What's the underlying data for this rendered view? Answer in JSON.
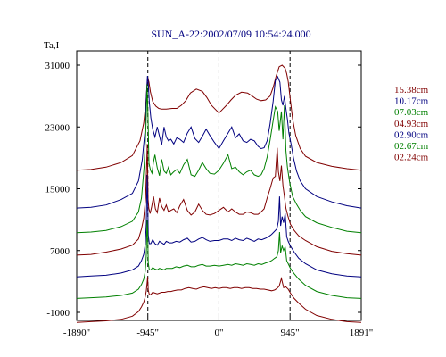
{
  "chart_data": {
    "type": "line",
    "title": "SUN_A-22:2002/07/09 10:54:24.000",
    "ylabel": "Ta,I",
    "xlabel": "",
    "x_ticks": [
      "-1890\"",
      "-945\"",
      "0\"",
      "945\"",
      "1891\""
    ],
    "x_tick_values": [
      -1890,
      -945,
      0,
      945,
      1891
    ],
    "y_ticks": [
      "31000",
      "23000",
      "15000",
      "7000",
      "-1000"
    ],
    "y_tick_values": [
      31000,
      23000,
      15000,
      7000,
      -1000
    ],
    "xlim": [
      -1890,
      1891
    ],
    "ylim": [
      -1000,
      31000
    ],
    "grid": false,
    "reference_lines_x": [
      -945,
      0,
      945
    ],
    "legend_position": "right",
    "series": [
      {
        "name": "15.38cm",
        "color": "#800000",
        "x": [
          -1890,
          -1700,
          -1500,
          -1300,
          -1150,
          -1050,
          -1000,
          -970,
          -955,
          -945,
          -930,
          -910,
          -880,
          -840,
          -800,
          -760,
          -700,
          -620,
          -560,
          -500,
          -440,
          -380,
          -300,
          -220,
          -160,
          -100,
          -50,
          0,
          50,
          100,
          160,
          220,
          300,
          380,
          440,
          500,
          560,
          620,
          680,
          720,
          760,
          800,
          840,
          880,
          900,
          920,
          950,
          980,
          1020,
          1080,
          1150,
          1300,
          1500,
          1700,
          1891
        ],
        "y": [
          17400,
          17500,
          17800,
          18400,
          19300,
          21200,
          23500,
          26200,
          28500,
          29400,
          28800,
          27500,
          26300,
          25700,
          25400,
          25300,
          25300,
          25400,
          25400,
          25800,
          26400,
          27400,
          27900,
          27600,
          26800,
          25800,
          25300,
          24800,
          25300,
          25800,
          26500,
          27100,
          27500,
          27400,
          27000,
          26600,
          26400,
          26500,
          27000,
          28100,
          29600,
          30800,
          31000,
          30600,
          29900,
          28900,
          26400,
          24000,
          21900,
          20200,
          19200,
          18400,
          17900,
          17600,
          17400
        ]
      },
      {
        "name": "10.17cm",
        "color": "#000080",
        "x": [
          -1890,
          -1700,
          -1500,
          -1300,
          -1150,
          -1070,
          -1020,
          -985,
          -965,
          -950,
          -940,
          -925,
          -905,
          -880,
          -850,
          -820,
          -790,
          -760,
          -730,
          -700,
          -670,
          -640,
          -600,
          -560,
          -520,
          -470,
          -420,
          -370,
          -320,
          -270,
          -220,
          -170,
          -120,
          -60,
          0,
          60,
          120,
          170,
          220,
          270,
          320,
          370,
          420,
          470,
          520,
          560,
          600,
          640,
          680,
          720,
          750,
          780,
          810,
          830,
          850,
          870,
          890,
          910,
          930,
          960,
          990,
          1030,
          1080,
          1150,
          1300,
          1500,
          1700,
          1891
        ],
        "y": [
          12500,
          12600,
          12900,
          13600,
          14400,
          16000,
          18700,
          22300,
          26800,
          29600,
          28800,
          26200,
          24200,
          22700,
          21700,
          23000,
          21800,
          20700,
          23000,
          21700,
          21200,
          21400,
          20800,
          21600,
          21400,
          21000,
          22200,
          23000,
          21500,
          21000,
          21800,
          22700,
          21900,
          21000,
          20200,
          21200,
          22200,
          23000,
          21600,
          22100,
          21200,
          21000,
          21400,
          21200,
          20500,
          20200,
          20300,
          21200,
          23400,
          26300,
          29000,
          29500,
          28800,
          26500,
          25800,
          27000,
          25400,
          24000,
          22200,
          20700,
          19000,
          17300,
          16000,
          15000,
          14000,
          13300,
          12800,
          12500
        ]
      },
      {
        "name": "07.03cm",
        "color": "#008000",
        "x": [
          -1890,
          -1700,
          -1500,
          -1300,
          -1150,
          -1070,
          -1030,
          -995,
          -970,
          -955,
          -942,
          -930,
          -910,
          -890,
          -870,
          -850,
          -820,
          -790,
          -760,
          -730,
          -700,
          -670,
          -640,
          -600,
          -560,
          -520,
          -470,
          -420,
          -370,
          -320,
          -270,
          -220,
          -170,
          -120,
          -60,
          0,
          60,
          120,
          170,
          220,
          270,
          320,
          370,
          420,
          470,
          520,
          560,
          600,
          640,
          680,
          720,
          750,
          780,
          800,
          830,
          850,
          870,
          890,
          910,
          940,
          980,
          1030,
          1080,
          1150,
          1300,
          1500,
          1700,
          1891
        ],
        "y": [
          9300,
          9400,
          9600,
          10100,
          10800,
          12000,
          13800,
          17800,
          23000,
          28500,
          24000,
          18300,
          17400,
          17000,
          18500,
          19400,
          17700,
          16700,
          18800,
          17300,
          17000,
          17800,
          16800,
          17200,
          17500,
          17000,
          18100,
          18800,
          16800,
          16600,
          17400,
          18400,
          17600,
          17000,
          16900,
          17400,
          18300,
          19400,
          17600,
          17800,
          17200,
          16800,
          17200,
          17400,
          16800,
          16600,
          16800,
          17600,
          19100,
          21300,
          23800,
          25600,
          25000,
          22500,
          25000,
          21400,
          25800,
          20000,
          17800,
          15800,
          14000,
          13000,
          12200,
          11400,
          10600,
          10000,
          9500,
          9300
        ]
      },
      {
        "name": "04.93cm",
        "color": "#800000",
        "x": [
          -1890,
          -1700,
          -1500,
          -1300,
          -1150,
          -1070,
          -1030,
          -1000,
          -975,
          -962,
          -952,
          -942,
          -932,
          -915,
          -895,
          -870,
          -845,
          -820,
          -790,
          -760,
          -730,
          -700,
          -670,
          -640,
          -600,
          -560,
          -520,
          -470,
          -420,
          -370,
          -320,
          -270,
          -220,
          -170,
          -120,
          -60,
          0,
          60,
          120,
          170,
          220,
          270,
          320,
          370,
          420,
          470,
          520,
          560,
          600,
          640,
          680,
          720,
          750,
          775,
          790,
          810,
          830,
          850,
          870,
          890,
          915,
          950,
          1000,
          1060,
          1150,
          1300,
          1500,
          1700,
          1891
        ],
        "y": [
          6400,
          6500,
          6800,
          7200,
          7700,
          8500,
          9800,
          11200,
          13800,
          17700,
          20800,
          13600,
          12500,
          11800,
          12600,
          14000,
          12400,
          11900,
          13800,
          12700,
          12200,
          12900,
          12000,
          12200,
          12400,
          11900,
          12800,
          13600,
          12200,
          11600,
          12000,
          13000,
          12200,
          11700,
          11600,
          11800,
          12200,
          12600,
          12000,
          12400,
          12000,
          11700,
          11700,
          12000,
          11900,
          11700,
          11700,
          12000,
          12400,
          13800,
          15000,
          16400,
          16600,
          20300,
          17200,
          16000,
          18000,
          15400,
          14000,
          12500,
          11500,
          10400,
          9600,
          8900,
          8300,
          7500,
          6900,
          6600,
          6400
        ]
      },
      {
        "name": "02.90cm",
        "color": "#000080",
        "x": [
          -1890,
          -1700,
          -1500,
          -1300,
          -1150,
          -1070,
          -1030,
          -1000,
          -980,
          -965,
          -955,
          -948,
          -940,
          -925,
          -905,
          -880,
          -850,
          -820,
          -790,
          -760,
          -730,
          -700,
          -660,
          -620,
          -570,
          -520,
          -470,
          -420,
          -370,
          -320,
          -270,
          -220,
          -170,
          -120,
          -60,
          0,
          60,
          120,
          170,
          220,
          270,
          320,
          370,
          420,
          470,
          520,
          570,
          620,
          660,
          700,
          740,
          770,
          790,
          805,
          820,
          840,
          860,
          880,
          900,
          920,
          950,
          1000,
          1060,
          1150,
          1300,
          1500,
          1700,
          1891
        ],
        "y": [
          3600,
          3700,
          3800,
          4100,
          4500,
          5000,
          5700,
          6500,
          7800,
          10500,
          16800,
          14000,
          9000,
          7900,
          7900,
          8400,
          7900,
          7700,
          8200,
          8000,
          7800,
          8200,
          8000,
          8000,
          8200,
          8100,
          8400,
          8600,
          8100,
          8200,
          8500,
          8700,
          8400,
          8200,
          8300,
          8300,
          8500,
          8500,
          8300,
          8600,
          8400,
          8300,
          8600,
          8400,
          8200,
          8500,
          8400,
          8600,
          8800,
          9100,
          9500,
          9800,
          10800,
          14000,
          10200,
          11400,
          10600,
          11800,
          8800,
          8200,
          7600,
          6800,
          6000,
          5300,
          4500,
          4000,
          3700,
          3600
        ]
      },
      {
        "name": "02.67cm",
        "color": "#008000",
        "x": [
          -1890,
          -1700,
          -1500,
          -1300,
          -1150,
          -1070,
          -1030,
          -1000,
          -980,
          -965,
          -955,
          -948,
          -940,
          -925,
          -905,
          -880,
          -850,
          -820,
          -790,
          -760,
          -730,
          -700,
          -660,
          -620,
          -570,
          -520,
          -470,
          -420,
          -370,
          -320,
          -270,
          -220,
          -170,
          -120,
          -60,
          0,
          60,
          120,
          170,
          220,
          270,
          320,
          370,
          420,
          470,
          520,
          570,
          620,
          660,
          700,
          740,
          770,
          790,
          805,
          820,
          840,
          860,
          880,
          900,
          920,
          950,
          1000,
          1060,
          1150,
          1300,
          1500,
          1700,
          1891
        ],
        "y": [
          800,
          900,
          1000,
          1200,
          1500,
          2000,
          2600,
          3300,
          4300,
          6400,
          11000,
          9600,
          5400,
          4500,
          4500,
          4800,
          4600,
          4500,
          4700,
          4600,
          4500,
          4700,
          4700,
          4700,
          4900,
          4800,
          5000,
          5100,
          4900,
          4900,
          5100,
          5200,
          5000,
          5000,
          5100,
          5000,
          5100,
          5200,
          5100,
          5300,
          5200,
          5100,
          5300,
          5200,
          5100,
          5300,
          5200,
          5400,
          5500,
          5700,
          6000,
          6200,
          7000,
          9400,
          6700,
          7600,
          7000,
          7500,
          5700,
          5300,
          4700,
          4000,
          3300,
          2500,
          1700,
          1200,
          900,
          800
        ]
      },
      {
        "name": "02.24cm",
        "color": "#800000",
        "x": [
          -1890,
          -1700,
          -1500,
          -1300,
          -1150,
          -1070,
          -1030,
          -1000,
          -980,
          -965,
          -955,
          -948,
          -940,
          -925,
          -905,
          -880,
          -850,
          -820,
          -790,
          -760,
          -720,
          -680,
          -640,
          -600,
          -550,
          -500,
          -450,
          -400,
          -350,
          -300,
          -250,
          -200,
          -150,
          -100,
          -50,
          0,
          50,
          100,
          150,
          200,
          250,
          300,
          350,
          400,
          450,
          500,
          550,
          600,
          650,
          700,
          740,
          770,
          800,
          830,
          860,
          890,
          920,
          950,
          1000,
          1060,
          1150,
          1300,
          1500,
          1700,
          1891
        ],
        "y": [
          -2300,
          -2200,
          -2100,
          -1900,
          -1500,
          -900,
          -300,
          300,
          1000,
          1800,
          2800,
          3600,
          1900,
          1300,
          1300,
          1600,
          1500,
          1400,
          1500,
          1600,
          1600,
          1700,
          1700,
          1800,
          1900,
          1900,
          2100,
          2200,
          2100,
          2000,
          2200,
          2300,
          2200,
          2100,
          2200,
          2100,
          2200,
          2200,
          2100,
          2200,
          2200,
          2100,
          2200,
          2200,
          2100,
          2100,
          2000,
          2000,
          1900,
          1800,
          1900,
          2100,
          2400,
          3400,
          2200,
          2300,
          2000,
          1500,
          800,
          200,
          -600,
          -1400,
          -1900,
          -2200,
          -2300
        ]
      }
    ]
  }
}
